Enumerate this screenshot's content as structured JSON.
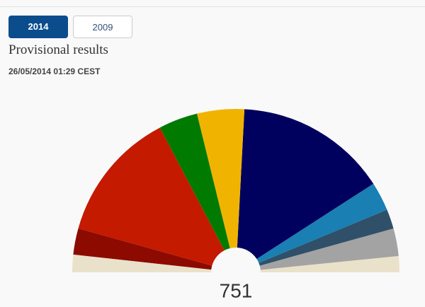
{
  "tabs": [
    "2014",
    "2009"
  ],
  "chart_data": {
    "type": "semi-donut",
    "title": "Provisional results",
    "subtitle": "26/05/2014 01:29 CEST",
    "total": 751,
    "values": [
      26,
      39,
      195,
      58,
      70,
      226,
      43,
      29,
      41,
      24
    ],
    "colors": [
      "#e9e1c9",
      "#8c0a00",
      "#c41a00",
      "#007a00",
      "#f0b400",
      "#00005e",
      "#1a7fb3",
      "#2f5068",
      "#a3a3a3",
      "#e9e1c9"
    ]
  }
}
